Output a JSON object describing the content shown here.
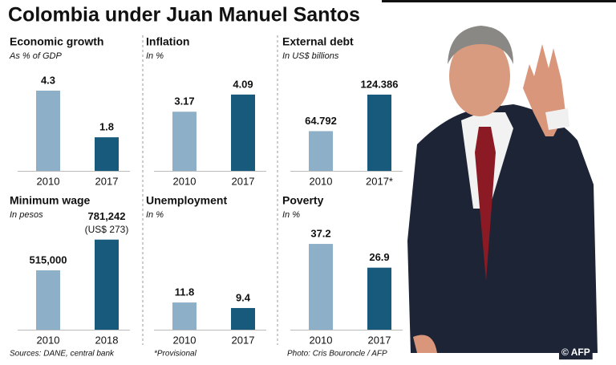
{
  "title": "Colombia under Juan Manuel Santos",
  "chart_data": [
    {
      "type": "bar",
      "title": "Economic growth",
      "subtitle": "As % of GDP",
      "categories": [
        "2010",
        "2017"
      ],
      "values": [
        4.3,
        1.8
      ],
      "colors": [
        "#8eafc8",
        "#175a7c"
      ],
      "ylim": [
        0,
        4.6
      ]
    },
    {
      "type": "bar",
      "title": "Inflation",
      "subtitle": "In %",
      "categories": [
        "2010",
        "2017"
      ],
      "values": [
        3.17,
        4.09
      ],
      "colors": [
        "#8eafc8",
        "#175a7c"
      ],
      "ylim": [
        0,
        4.6
      ]
    },
    {
      "type": "bar",
      "title": "External debt",
      "subtitle": "In US$ billions",
      "categories": [
        "2010",
        "2017*"
      ],
      "values": [
        64.792,
        124.386
      ],
      "colors": [
        "#8eafc8",
        "#175a7c"
      ],
      "ylim": [
        0,
        140
      ]
    },
    {
      "type": "bar",
      "title": "Minimum wage",
      "subtitle": "In pesos",
      "categories": [
        "2010",
        "2018"
      ],
      "values": [
        515000,
        781242
      ],
      "value_labels": [
        "515,000",
        "781,242"
      ],
      "annotation": "(US$ 273)",
      "colors": [
        "#8eafc8",
        "#175a7c"
      ],
      "ylim": [
        0,
        800000
      ]
    },
    {
      "type": "bar",
      "title": "Unemployment",
      "subtitle": "In %",
      "categories": [
        "2010",
        "2017"
      ],
      "values": [
        11.8,
        9.4
      ],
      "colors": [
        "#8eafc8",
        "#175a7c"
      ],
      "ylim": [
        0,
        40
      ]
    },
    {
      "type": "bar",
      "title": "Poverty",
      "subtitle": "In %",
      "categories": [
        "2010",
        "2017"
      ],
      "values": [
        37.2,
        26.9
      ],
      "colors": [
        "#8eafc8",
        "#175a7c"
      ],
      "ylim": [
        0,
        40
      ]
    }
  ],
  "footer": {
    "sources": "Sources: DANE, central bank",
    "note": "*Provisional",
    "photo": "Photo:  Cris Bouroncle / AFP",
    "credit": "© AFP"
  }
}
